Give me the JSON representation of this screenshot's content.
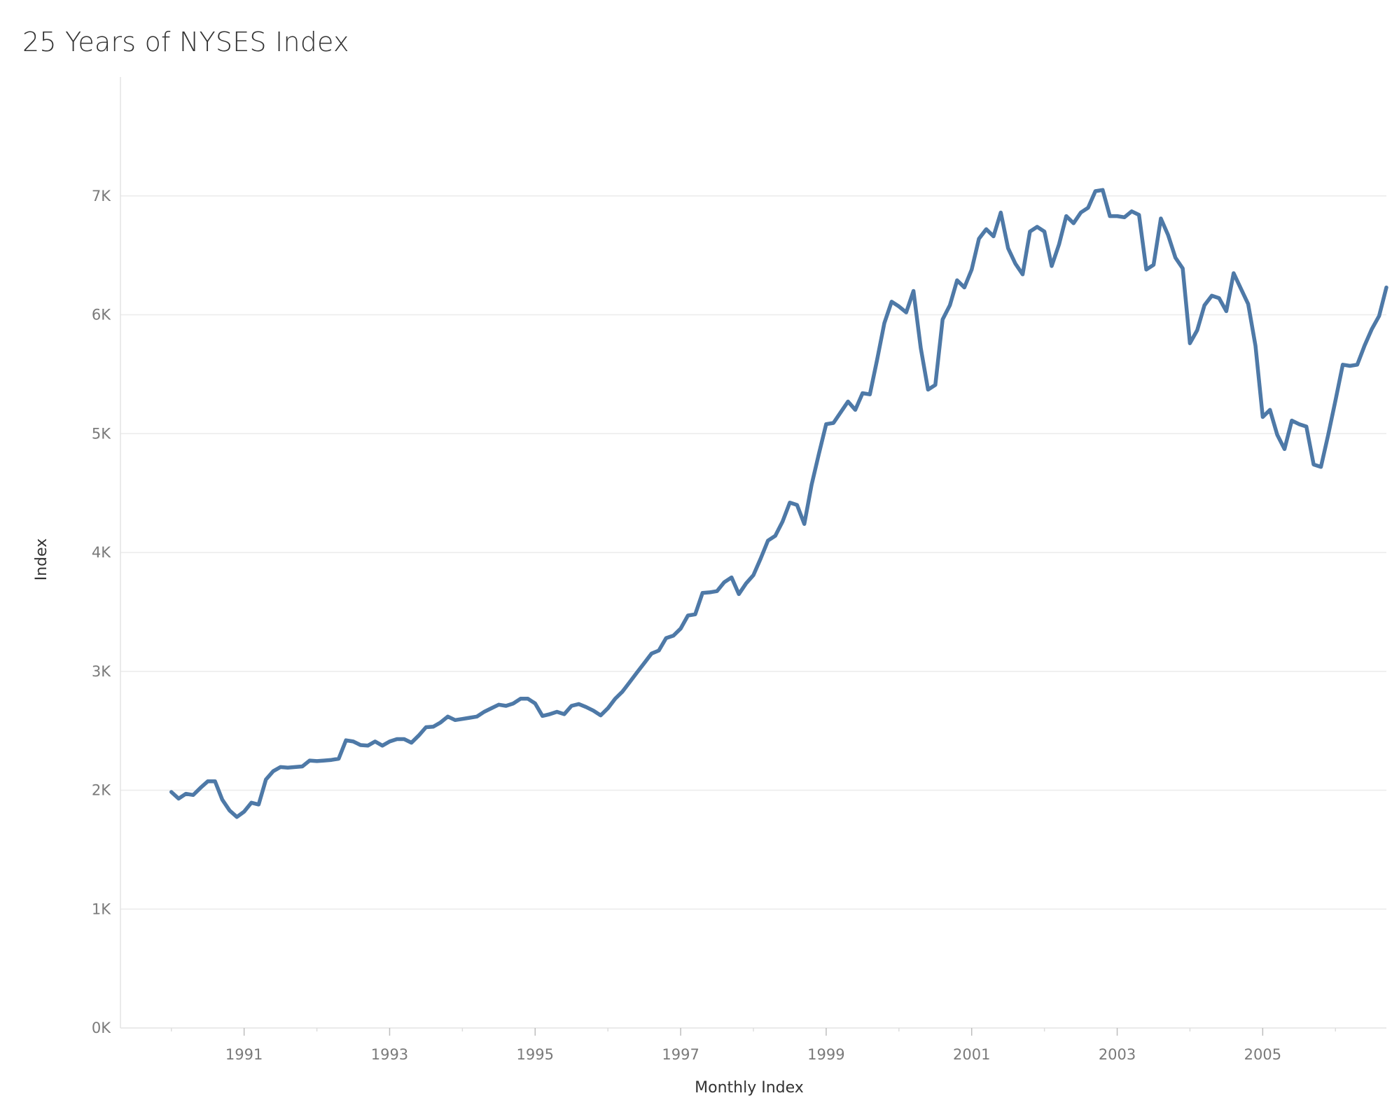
{
  "chart_data": {
    "type": "line",
    "title": "25 Years of NYSES Index",
    "xlabel": "Monthly Index",
    "ylabel": "Index",
    "x_range": [
      1989.3,
      2006.7
    ],
    "ylim": [
      0,
      8000
    ],
    "y_ticks": [
      0,
      1000,
      2000,
      3000,
      4000,
      5000,
      6000,
      7000
    ],
    "y_tick_labels": [
      "0K",
      "1K",
      "2K",
      "3K",
      "4K",
      "5K",
      "6K",
      "7K"
    ],
    "x_ticks": [
      1991,
      1993,
      1995,
      1997,
      1999,
      2001,
      2003,
      2005
    ],
    "x_tick_labels": [
      "1991",
      "1993",
      "1995",
      "1997",
      "1999",
      "2001",
      "2003",
      "2005"
    ],
    "grid": true,
    "line_color": "#4e79a7",
    "series": [
      {
        "values": [
          [
            1990.0,
            1985
          ],
          [
            1990.1,
            1930
          ],
          [
            1990.2,
            1970
          ],
          [
            1990.3,
            1960
          ],
          [
            1990.4,
            2020
          ],
          [
            1990.5,
            2075
          ],
          [
            1990.6,
            2075
          ],
          [
            1990.7,
            1920
          ],
          [
            1990.8,
            1830
          ],
          [
            1990.9,
            1775
          ],
          [
            1991.0,
            1820
          ],
          [
            1991.1,
            1895
          ],
          [
            1991.2,
            1880
          ],
          [
            1991.3,
            2090
          ],
          [
            1991.4,
            2160
          ],
          [
            1991.5,
            2195
          ],
          [
            1991.6,
            2190
          ],
          [
            1991.7,
            2195
          ],
          [
            1991.8,
            2200
          ],
          [
            1991.9,
            2250
          ],
          [
            1992.0,
            2245
          ],
          [
            1992.1,
            2250
          ],
          [
            1992.2,
            2255
          ],
          [
            1992.3,
            2265
          ],
          [
            1992.4,
            2420
          ],
          [
            1992.5,
            2410
          ],
          [
            1992.6,
            2380
          ],
          [
            1992.7,
            2375
          ],
          [
            1992.8,
            2410
          ],
          [
            1992.9,
            2375
          ],
          [
            1993.0,
            2410
          ],
          [
            1993.1,
            2430
          ],
          [
            1993.2,
            2430
          ],
          [
            1993.3,
            2400
          ],
          [
            1993.4,
            2460
          ],
          [
            1993.5,
            2530
          ],
          [
            1993.6,
            2535
          ],
          [
            1993.7,
            2570
          ],
          [
            1993.8,
            2620
          ],
          [
            1993.9,
            2590
          ],
          [
            1994.0,
            2600
          ],
          [
            1994.1,
            2610
          ],
          [
            1994.2,
            2620
          ],
          [
            1994.3,
            2660
          ],
          [
            1994.4,
            2690
          ],
          [
            1994.5,
            2720
          ],
          [
            1994.6,
            2710
          ],
          [
            1994.7,
            2730
          ],
          [
            1994.8,
            2770
          ],
          [
            1994.9,
            2770
          ],
          [
            1995.0,
            2730
          ],
          [
            1995.1,
            2625
          ],
          [
            1995.2,
            2640
          ],
          [
            1995.3,
            2660
          ],
          [
            1995.4,
            2640
          ],
          [
            1995.5,
            2710
          ],
          [
            1995.6,
            2725
          ],
          [
            1995.7,
            2700
          ],
          [
            1995.8,
            2670
          ],
          [
            1995.9,
            2630
          ],
          [
            1996.0,
            2690
          ],
          [
            1996.1,
            2770
          ],
          [
            1996.2,
            2830
          ],
          [
            1996.3,
            2910
          ],
          [
            1996.4,
            2990
          ],
          [
            1996.5,
            3070
          ],
          [
            1996.6,
            3150
          ],
          [
            1996.7,
            3175
          ],
          [
            1996.8,
            3280
          ],
          [
            1996.9,
            3300
          ],
          [
            1997.0,
            3360
          ],
          [
            1997.1,
            3470
          ],
          [
            1997.2,
            3480
          ],
          [
            1997.3,
            3660
          ],
          [
            1997.4,
            3665
          ],
          [
            1997.5,
            3675
          ],
          [
            1997.6,
            3750
          ],
          [
            1997.7,
            3790
          ],
          [
            1997.8,
            3650
          ],
          [
            1997.9,
            3740
          ],
          [
            1998.0,
            3810
          ],
          [
            1998.1,
            3950
          ],
          [
            1998.2,
            4100
          ],
          [
            1998.3,
            4140
          ],
          [
            1998.4,
            4260
          ],
          [
            1998.5,
            4420
          ],
          [
            1998.6,
            4400
          ],
          [
            1998.7,
            4240
          ],
          [
            1998.8,
            4570
          ],
          [
            1998.9,
            4830
          ],
          [
            1999.0,
            5080
          ],
          [
            1999.1,
            5090
          ],
          [
            1999.2,
            5180
          ],
          [
            1999.3,
            5270
          ],
          [
            1999.4,
            5200
          ],
          [
            1999.5,
            5340
          ],
          [
            1999.6,
            5330
          ],
          [
            1999.7,
            5620
          ],
          [
            1999.8,
            5930
          ],
          [
            1999.9,
            6110
          ],
          [
            2000.0,
            6070
          ],
          [
            2000.1,
            6020
          ],
          [
            2000.2,
            6200
          ],
          [
            2000.3,
            5720
          ],
          [
            2000.4,
            5370
          ],
          [
            2000.5,
            5410
          ],
          [
            2000.6,
            5960
          ],
          [
            2000.7,
            6080
          ],
          [
            2000.8,
            6290
          ],
          [
            2000.9,
            6230
          ],
          [
            2001.0,
            6380
          ],
          [
            2001.1,
            6640
          ],
          [
            2001.2,
            6720
          ],
          [
            2001.3,
            6660
          ],
          [
            2001.4,
            6860
          ],
          [
            2001.5,
            6560
          ],
          [
            2001.6,
            6430
          ],
          [
            2001.7,
            6340
          ],
          [
            2001.8,
            6700
          ],
          [
            2001.9,
            6740
          ],
          [
            2002.0,
            6700
          ],
          [
            2002.1,
            6410
          ],
          [
            2002.2,
            6590
          ],
          [
            2002.3,
            6830
          ],
          [
            2002.4,
            6770
          ],
          [
            2002.5,
            6860
          ],
          [
            2002.6,
            6900
          ],
          [
            2002.7,
            7040
          ],
          [
            2002.8,
            7050
          ],
          [
            2002.9,
            6830
          ],
          [
            2003.0,
            6830
          ],
          [
            2003.1,
            6820
          ],
          [
            2003.2,
            6870
          ],
          [
            2003.3,
            6840
          ],
          [
            2003.4,
            6380
          ],
          [
            2003.5,
            6420
          ],
          [
            2003.6,
            6810
          ],
          [
            2003.7,
            6670
          ],
          [
            2003.8,
            6480
          ],
          [
            2003.9,
            6390
          ],
          [
            2004.0,
            5760
          ],
          [
            2004.1,
            5870
          ],
          [
            2004.2,
            6080
          ],
          [
            2004.3,
            6160
          ],
          [
            2004.4,
            6140
          ],
          [
            2004.5,
            6030
          ],
          [
            2004.6,
            6350
          ],
          [
            2004.7,
            6220
          ],
          [
            2004.8,
            6090
          ],
          [
            2004.9,
            5740
          ],
          [
            2005.0,
            5140
          ],
          [
            2005.1,
            5200
          ],
          [
            2005.2,
            4990
          ],
          [
            2005.3,
            4870
          ],
          [
            2005.4,
            5110
          ],
          [
            2005.5,
            5080
          ],
          [
            2005.6,
            5060
          ],
          [
            2005.7,
            4740
          ],
          [
            2005.8,
            4720
          ],
          [
            2005.9,
            4990
          ],
          [
            2006.0,
            5280
          ],
          [
            2006.1,
            5580
          ],
          [
            2006.2,
            5570
          ],
          [
            2006.3,
            5580
          ],
          [
            2006.4,
            5740
          ],
          [
            2006.5,
            5880
          ],
          [
            2006.6,
            5990
          ],
          [
            2006.7,
            6230
          ]
        ]
      }
    ]
  }
}
